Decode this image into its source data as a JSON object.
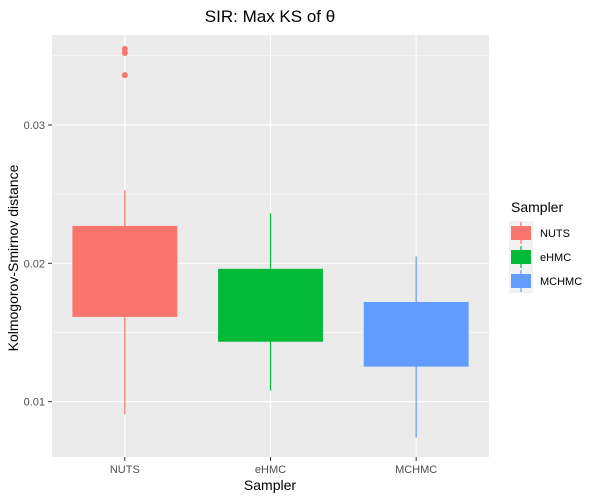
{
  "chart_data": {
    "type": "boxplot",
    "title": "SIR: Max KS of θ",
    "xlabel": "Sampler",
    "ylabel": "Kolmogorov-Smirnov distance",
    "ylim": [
      0.006,
      0.0365
    ],
    "yticks": [
      0.01,
      0.02,
      0.03
    ],
    "ytick_labels": [
      "0.01",
      "0.02",
      "0.03"
    ],
    "categories": [
      "NUTS",
      "eHMC",
      "MCHMC"
    ],
    "grid": true,
    "legend": {
      "title": "Sampler",
      "placement": "right",
      "entries": [
        "NUTS",
        "eHMC",
        "MCHMC"
      ]
    },
    "colors": {
      "NUTS": "#F8766D",
      "eHMC": "#00BA38",
      "MCHMC": "#619CFF",
      "panel": "#EBEBEB",
      "grid": "#FFFFFF"
    },
    "series": [
      {
        "category": "NUTS",
        "min": 0.0091,
        "q1": 0.0162,
        "median": 0.0162,
        "q3": 0.0227,
        "max": 0.0253,
        "outliers": [
          0.0336,
          0.0352,
          0.0355
        ]
      },
      {
        "category": "eHMC",
        "min": 0.0108,
        "q1": 0.0144,
        "median": 0.0144,
        "q3": 0.0196,
        "max": 0.0236,
        "outliers": []
      },
      {
        "category": "MCHMC",
        "min": 0.0074,
        "q1": 0.0126,
        "median": 0.0126,
        "q3": 0.0172,
        "max": 0.0205,
        "outliers": []
      }
    ]
  }
}
